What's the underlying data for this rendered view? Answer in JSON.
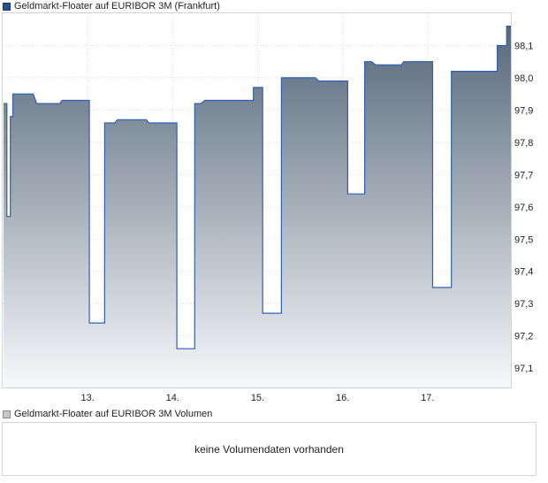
{
  "legend": {
    "price_label": "Geldmarkt-Floater auf EURIBOR 3M (Frankfurt)",
    "volume_label": "Geldmarkt-Floater auf EURIBOR 3M Volumen"
  },
  "volume": {
    "message": "keine Volumendaten vorhanden"
  },
  "colors": {
    "line": "#2f5fb3",
    "area_top": "#56687a",
    "area_bottom": "#f7f8fa",
    "grid": "#d9d9d9",
    "price_marker": "#2a4d8f",
    "volume_marker": "#c8c8c8"
  },
  "chart_data": {
    "type": "area",
    "title": "Geldmarkt-Floater auf EURIBOR 3M (Frankfurt)",
    "xlabel": "",
    "ylabel": "",
    "ylim": [
      97.04,
      98.2
    ],
    "yticks": [
      97.1,
      97.2,
      97.3,
      97.4,
      97.5,
      97.6,
      97.7,
      97.8,
      97.9,
      98.0,
      98.1
    ],
    "ytick_labels": [
      "97,1",
      "97,2",
      "97,3",
      "97,4",
      "97,5",
      "97,6",
      "97,7",
      "97,8",
      "97,9",
      "98,0",
      "98,1"
    ],
    "xlim": [
      12.0,
      17.98
    ],
    "xticks": [
      13,
      14,
      15,
      16,
      17
    ],
    "xtick_labels": [
      "13.",
      "14.",
      "15.",
      "16.",
      "17."
    ],
    "grid": true,
    "series": [
      {
        "name": "Geldmarkt-Floater auf EURIBOR 3M (Frankfurt)",
        "points": [
          [
            12.01,
            97.92
          ],
          [
            12.05,
            97.92
          ],
          [
            12.05,
            97.57
          ],
          [
            12.09,
            97.57
          ],
          [
            12.09,
            97.88
          ],
          [
            12.12,
            97.88
          ],
          [
            12.12,
            97.95
          ],
          [
            12.36,
            97.95
          ],
          [
            12.4,
            97.92
          ],
          [
            12.67,
            97.92
          ],
          [
            12.7,
            97.93
          ],
          [
            13.02,
            97.93
          ],
          [
            13.02,
            97.24
          ],
          [
            13.2,
            97.24
          ],
          [
            13.2,
            97.86
          ],
          [
            13.32,
            97.86
          ],
          [
            13.35,
            97.87
          ],
          [
            13.69,
            97.87
          ],
          [
            13.72,
            97.86
          ],
          [
            14.05,
            97.86
          ],
          [
            14.05,
            97.16
          ],
          [
            14.26,
            97.16
          ],
          [
            14.26,
            97.92
          ],
          [
            14.33,
            97.92
          ],
          [
            14.38,
            97.93
          ],
          [
            14.95,
            97.93
          ],
          [
            14.95,
            97.97
          ],
          [
            15.06,
            97.97
          ],
          [
            15.06,
            97.27
          ],
          [
            15.28,
            97.27
          ],
          [
            15.28,
            98.0
          ],
          [
            15.68,
            98.0
          ],
          [
            15.72,
            97.99
          ],
          [
            16.06,
            97.99
          ],
          [
            16.06,
            97.64
          ],
          [
            16.26,
            97.64
          ],
          [
            16.26,
            98.05
          ],
          [
            16.34,
            98.05
          ],
          [
            16.39,
            98.04
          ],
          [
            16.69,
            98.04
          ],
          [
            16.72,
            98.05
          ],
          [
            17.06,
            98.05
          ],
          [
            17.06,
            97.35
          ],
          [
            17.28,
            97.35
          ],
          [
            17.28,
            98.02
          ],
          [
            17.82,
            98.02
          ],
          [
            17.82,
            98.1
          ],
          [
            17.93,
            98.1
          ],
          [
            17.93,
            98.16
          ],
          [
            17.98,
            98.16
          ]
        ]
      }
    ]
  }
}
